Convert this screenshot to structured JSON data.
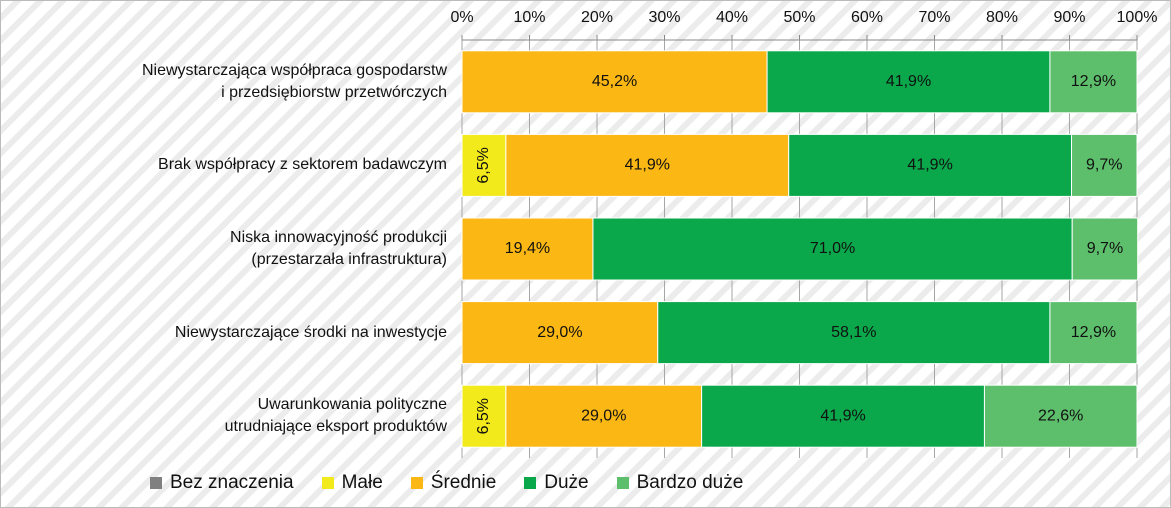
{
  "chart_data": {
    "type": "stacked-bar-horizontal",
    "categories": [
      "Niewystarczająca współpraca gospodarstw\ni przedsiębiorstw przetwórczych",
      "Brak współpracy z sektorem badawczym",
      "Niska innowacyjność  produkcji\n(przestarzała infrastruktura)",
      "Niewystarczające środki na inwestycje",
      "Uwarunkowania polityczne\nutrudniające eksport produktów"
    ],
    "series": [
      {
        "name": "Bez znaczenia",
        "color": "#808080",
        "values": [
          null,
          null,
          null,
          null,
          null
        ],
        "value_labels": [
          null,
          null,
          null,
          null,
          null
        ]
      },
      {
        "name": "Małe",
        "color": "#f2ea1a",
        "values": [
          null,
          6.5,
          null,
          null,
          6.5
        ],
        "value_labels": [
          null,
          "6,5%",
          null,
          null,
          "6,5%"
        ]
      },
      {
        "name": "Średnie",
        "color": "#fbb714",
        "values": [
          45.2,
          41.9,
          19.4,
          29.0,
          29.0
        ],
        "value_labels": [
          "45,2%",
          "41,9%",
          "19,4%",
          "29,0%",
          "29,0%"
        ]
      },
      {
        "name": "Duże",
        "color": "#0aa84a",
        "values": [
          41.9,
          41.9,
          71.0,
          58.1,
          41.9
        ],
        "value_labels": [
          "41,9%",
          "41,9%",
          "71,0%",
          "58,1%",
          "41,9%"
        ]
      },
      {
        "name": "Bardzo duże",
        "color": "#5dbe6b",
        "values": [
          12.9,
          9.7,
          9.7,
          12.9,
          22.6
        ],
        "value_labels": [
          "12,9%",
          "9,7%",
          "9,7%",
          "12,9%",
          "22,6%"
        ]
      }
    ],
    "xlim": [
      0,
      100
    ],
    "xticks": [
      {
        "value": 0,
        "label": "0%"
      },
      {
        "value": 10,
        "label": "10%"
      },
      {
        "value": 20,
        "label": "20%"
      },
      {
        "value": 30,
        "label": "30%"
      },
      {
        "value": 40,
        "label": "40%"
      },
      {
        "value": 50,
        "label": "50%"
      },
      {
        "value": 60,
        "label": "60%"
      },
      {
        "value": 70,
        "label": "70%"
      },
      {
        "value": 80,
        "label": "80%"
      },
      {
        "value": 90,
        "label": "90%"
      },
      {
        "value": 100,
        "label": "100%"
      }
    ],
    "grid": true,
    "legend": "bottom"
  }
}
